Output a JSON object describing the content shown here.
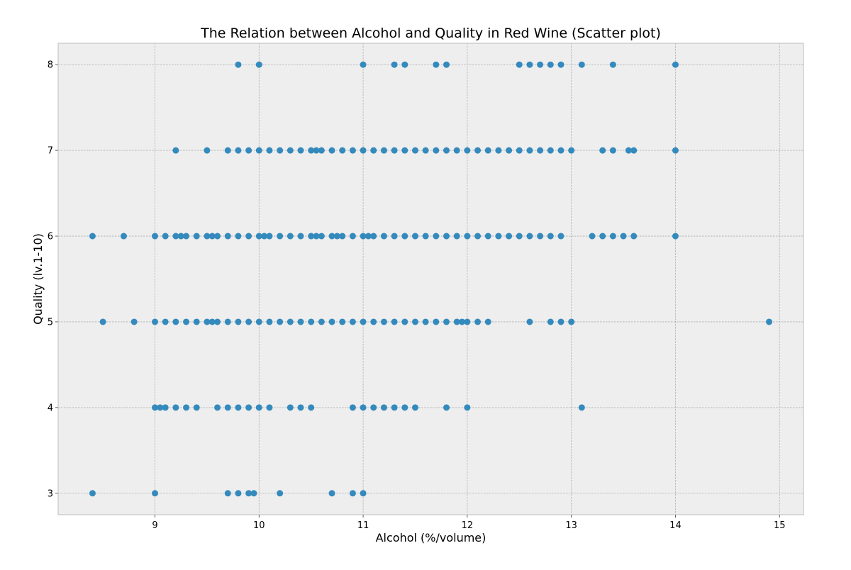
{
  "chart_data": {
    "type": "scatter",
    "title": "The Relation between Alcohol and Quality in Red Wine (Scatter plot)",
    "xlabel": "Alcohol (%/volume)",
    "ylabel": "Quality (lv.1-10)",
    "xlim": [
      8.07,
      15.23
    ],
    "ylim": [
      2.75,
      8.25
    ],
    "xticks": [
      9,
      10,
      11,
      12,
      13,
      14,
      15
    ],
    "yticks": [
      3,
      4,
      5,
      6,
      7,
      8
    ],
    "grid": true,
    "legend": "none",
    "colors": {
      "point": "#348abd",
      "plot_background": "#eeeeee",
      "grid": "#b0b0b0",
      "frame": "#bcbcbc"
    },
    "series": [
      {
        "points": [
          [
            9.8,
            8
          ],
          [
            10.0,
            8
          ],
          [
            11.0,
            8
          ],
          [
            11.3,
            8
          ],
          [
            11.4,
            8
          ],
          [
            11.7,
            8
          ],
          [
            11.8,
            8
          ],
          [
            12.5,
            8
          ],
          [
            12.6,
            8
          ],
          [
            12.7,
            8
          ],
          [
            12.8,
            8
          ],
          [
            12.9,
            8
          ],
          [
            13.1,
            8
          ],
          [
            13.4,
            8
          ],
          [
            14.0,
            8
          ],
          [
            9.2,
            7
          ],
          [
            9.5,
            7
          ],
          [
            9.7,
            7
          ],
          [
            9.8,
            7
          ],
          [
            9.9,
            7
          ],
          [
            10.0,
            7
          ],
          [
            10.1,
            7
          ],
          [
            10.2,
            7
          ],
          [
            10.3,
            7
          ],
          [
            10.4,
            7
          ],
          [
            10.5,
            7
          ],
          [
            10.55,
            7
          ],
          [
            10.6,
            7
          ],
          [
            10.7,
            7
          ],
          [
            10.8,
            7
          ],
          [
            10.9,
            7
          ],
          [
            11.0,
            7
          ],
          [
            11.1,
            7
          ],
          [
            11.2,
            7
          ],
          [
            11.3,
            7
          ],
          [
            11.4,
            7
          ],
          [
            11.5,
            7
          ],
          [
            11.6,
            7
          ],
          [
            11.7,
            7
          ],
          [
            11.8,
            7
          ],
          [
            11.9,
            7
          ],
          [
            12.0,
            7
          ],
          [
            12.1,
            7
          ],
          [
            12.2,
            7
          ],
          [
            12.3,
            7
          ],
          [
            12.4,
            7
          ],
          [
            12.5,
            7
          ],
          [
            12.6,
            7
          ],
          [
            12.7,
            7
          ],
          [
            12.8,
            7
          ],
          [
            12.9,
            7
          ],
          [
            13.0,
            7
          ],
          [
            13.3,
            7
          ],
          [
            13.4,
            7
          ],
          [
            13.55,
            7
          ],
          [
            13.6,
            7
          ],
          [
            14.0,
            7
          ],
          [
            8.4,
            6
          ],
          [
            8.7,
            6
          ],
          [
            9.0,
            6
          ],
          [
            9.1,
            6
          ],
          [
            9.2,
            6
          ],
          [
            9.25,
            6
          ],
          [
            9.3,
            6
          ],
          [
            9.4,
            6
          ],
          [
            9.5,
            6
          ],
          [
            9.55,
            6
          ],
          [
            9.6,
            6
          ],
          [
            9.7,
            6
          ],
          [
            9.8,
            6
          ],
          [
            9.9,
            6
          ],
          [
            10.0,
            6
          ],
          [
            10.05,
            6
          ],
          [
            10.1,
            6
          ],
          [
            10.2,
            6
          ],
          [
            10.3,
            6
          ],
          [
            10.4,
            6
          ],
          [
            10.5,
            6
          ],
          [
            10.55,
            6
          ],
          [
            10.6,
            6
          ],
          [
            10.7,
            6
          ],
          [
            10.75,
            6
          ],
          [
            10.8,
            6
          ],
          [
            10.9,
            6
          ],
          [
            11.0,
            6
          ],
          [
            11.05,
            6
          ],
          [
            11.1,
            6
          ],
          [
            11.2,
            6
          ],
          [
            11.3,
            6
          ],
          [
            11.4,
            6
          ],
          [
            11.5,
            6
          ],
          [
            11.6,
            6
          ],
          [
            11.7,
            6
          ],
          [
            11.8,
            6
          ],
          [
            11.9,
            6
          ],
          [
            12.0,
            6
          ],
          [
            12.1,
            6
          ],
          [
            12.2,
            6
          ],
          [
            12.3,
            6
          ],
          [
            12.4,
            6
          ],
          [
            12.5,
            6
          ],
          [
            12.6,
            6
          ],
          [
            12.7,
            6
          ],
          [
            12.8,
            6
          ],
          [
            12.9,
            6
          ],
          [
            13.2,
            6
          ],
          [
            13.3,
            6
          ],
          [
            13.4,
            6
          ],
          [
            13.5,
            6
          ],
          [
            13.6,
            6
          ],
          [
            14.0,
            6
          ],
          [
            8.5,
            5
          ],
          [
            8.8,
            5
          ],
          [
            9.0,
            5
          ],
          [
            9.1,
            5
          ],
          [
            9.2,
            5
          ],
          [
            9.3,
            5
          ],
          [
            9.4,
            5
          ],
          [
            9.5,
            5
          ],
          [
            9.55,
            5
          ],
          [
            9.6,
            5
          ],
          [
            9.7,
            5
          ],
          [
            9.8,
            5
          ],
          [
            9.9,
            5
          ],
          [
            10.0,
            5
          ],
          [
            10.1,
            5
          ],
          [
            10.2,
            5
          ],
          [
            10.3,
            5
          ],
          [
            10.4,
            5
          ],
          [
            10.5,
            5
          ],
          [
            10.6,
            5
          ],
          [
            10.7,
            5
          ],
          [
            10.8,
            5
          ],
          [
            10.9,
            5
          ],
          [
            11.0,
            5
          ],
          [
            11.1,
            5
          ],
          [
            11.2,
            5
          ],
          [
            11.3,
            5
          ],
          [
            11.4,
            5
          ],
          [
            11.5,
            5
          ],
          [
            11.6,
            5
          ],
          [
            11.7,
            5
          ],
          [
            11.8,
            5
          ],
          [
            11.9,
            5
          ],
          [
            11.95,
            5
          ],
          [
            12.0,
            5
          ],
          [
            12.1,
            5
          ],
          [
            12.2,
            5
          ],
          [
            12.6,
            5
          ],
          [
            12.8,
            5
          ],
          [
            12.9,
            5
          ],
          [
            13.0,
            5
          ],
          [
            14.9,
            5
          ],
          [
            9.0,
            4
          ],
          [
            9.05,
            4
          ],
          [
            9.1,
            4
          ],
          [
            9.2,
            4
          ],
          [
            9.3,
            4
          ],
          [
            9.4,
            4
          ],
          [
            9.6,
            4
          ],
          [
            9.7,
            4
          ],
          [
            9.8,
            4
          ],
          [
            9.9,
            4
          ],
          [
            10.0,
            4
          ],
          [
            10.1,
            4
          ],
          [
            10.3,
            4
          ],
          [
            10.4,
            4
          ],
          [
            10.5,
            4
          ],
          [
            10.9,
            4
          ],
          [
            11.0,
            4
          ],
          [
            11.1,
            4
          ],
          [
            11.2,
            4
          ],
          [
            11.3,
            4
          ],
          [
            11.4,
            4
          ],
          [
            11.5,
            4
          ],
          [
            11.8,
            4
          ],
          [
            12.0,
            4
          ],
          [
            13.1,
            4
          ],
          [
            8.4,
            3
          ],
          [
            9.0,
            3
          ],
          [
            9.7,
            3
          ],
          [
            9.8,
            3
          ],
          [
            9.9,
            3
          ],
          [
            9.95,
            3
          ],
          [
            10.2,
            3
          ],
          [
            10.7,
            3
          ],
          [
            10.9,
            3
          ],
          [
            11.0,
            3
          ]
        ]
      }
    ]
  }
}
